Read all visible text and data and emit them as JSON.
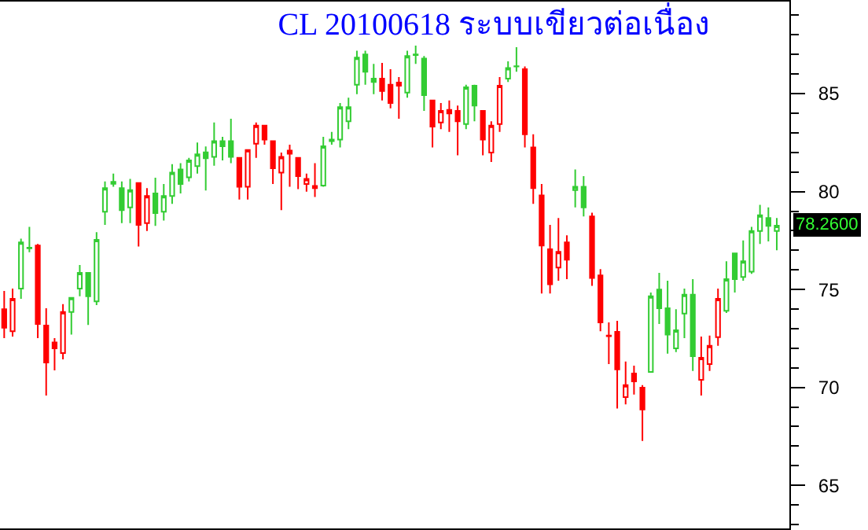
{
  "chart_data": {
    "type": "candlestick",
    "title": "CL 20100618 ระบบเขียวต่อเนื่อง",
    "categories": [
      null,
      null,
      null,
      null,
      null,
      null,
      null,
      null,
      null,
      null,
      null,
      null,
      null,
      null,
      null,
      null,
      null,
      null,
      null,
      null,
      null,
      null,
      null,
      null,
      null,
      null,
      null,
      null,
      null,
      null,
      null,
      null,
      null,
      null,
      null,
      null,
      null,
      null,
      null,
      null,
      null,
      null,
      null,
      null,
      null,
      null,
      null,
      null,
      null,
      null,
      null,
      null,
      null,
      null,
      null,
      null,
      null,
      null,
      null,
      null,
      null,
      null,
      null,
      null,
      null,
      null,
      null,
      null,
      null,
      null,
      null,
      null,
      null,
      null,
      null,
      null,
      null,
      null,
      null,
      null,
      null,
      null,
      null,
      null,
      null,
      null,
      null,
      null,
      null,
      null,
      null,
      null,
      null
    ],
    "ohlc": [
      [
        73.99,
        74.92,
        72.52,
        73.05
      ],
      [
        72.87,
        75.05,
        72.6,
        74.52
      ],
      [
        75.05,
        77.59,
        74.52,
        77.4
      ],
      [
        77.1,
        78.2,
        76.9,
        77.13
      ],
      [
        77.24,
        77.32,
        72.52,
        73.24
      ],
      [
        73.16,
        74.04,
        69.59,
        71.27
      ],
      [
        72.3,
        72.52,
        70.87,
        71.99
      ],
      [
        71.75,
        74.25,
        71.43,
        73.85
      ],
      [
        73.85,
        74.6,
        72.7,
        74.57
      ],
      [
        75.05,
        76.25,
        74.65,
        75.85
      ],
      [
        75.85,
        75.85,
        73.19,
        74.65
      ],
      [
        74.39,
        77.93,
        74.2,
        77.53
      ],
      [
        78.97,
        80.52,
        78.3,
        80.17
      ],
      [
        80.4,
        80.92,
        80.25,
        80.5
      ],
      [
        80.17,
        80.52,
        78.39,
        79.05
      ],
      [
        79.19,
        80.65,
        78.39,
        80.07
      ],
      [
        80.44,
        80.44,
        77.19,
        78.3
      ],
      [
        78.39,
        80.17,
        77.99,
        79.77
      ],
      [
        79.9,
        80.71,
        78.25,
        78.9
      ],
      [
        78.97,
        80.39,
        78.52,
        79.77
      ],
      [
        79.77,
        81.4,
        79.37,
        80.97
      ],
      [
        81.13,
        81.45,
        79.9,
        80.39
      ],
      [
        80.73,
        81.72,
        80.52,
        81.59
      ],
      [
        81.3,
        82.5,
        80.92,
        81.9
      ],
      [
        82.0,
        82.3,
        80.05,
        81.7
      ],
      [
        81.77,
        83.53,
        81.32,
        82.57
      ],
      [
        82.57,
        82.79,
        81.59,
        82.31
      ],
      [
        82.57,
        83.72,
        81.45,
        81.77
      ],
      [
        81.72,
        81.72,
        79.59,
        80.25
      ],
      [
        80.25,
        82.12,
        79.59,
        82.12
      ],
      [
        82.44,
        83.53,
        81.72,
        83.37
      ],
      [
        83.37,
        83.37,
        82.39,
        82.65
      ],
      [
        82.57,
        82.57,
        80.39,
        81.19
      ],
      [
        80.97,
        81.99,
        79.05,
        81.77
      ],
      [
        81.93,
        82.39,
        80.25,
        82.09
      ],
      [
        81.72,
        81.72,
        80.12,
        80.79
      ],
      [
        80.39,
        80.92,
        79.99,
        80.65
      ],
      [
        80.28,
        81.45,
        79.72,
        80.17
      ],
      [
        80.31,
        82.79,
        80.25,
        82.31
      ],
      [
        82.65,
        83.05,
        82.39,
        82.57
      ],
      [
        82.65,
        84.52,
        82.25,
        84.31
      ],
      [
        83.59,
        84.79,
        83.19,
        84.31
      ],
      [
        85.45,
        87.19,
        84.97,
        86.84
      ],
      [
        87.0,
        87.19,
        85.45,
        86.12
      ],
      [
        85.77,
        86.52,
        84.97,
        85.59
      ],
      [
        85.77,
        86.57,
        84.65,
        85.13
      ],
      [
        85.45,
        86.25,
        84.25,
        84.52
      ],
      [
        85.4,
        85.85,
        83.72,
        85.56
      ],
      [
        85.05,
        87.19,
        84.79,
        86.92
      ],
      [
        86.97,
        87.45,
        86.52,
        87.0
      ],
      [
        86.79,
        86.92,
        84.12,
        84.92
      ],
      [
        84.65,
        84.65,
        82.25,
        83.32
      ],
      [
        83.53,
        84.52,
        83.19,
        84.12
      ],
      [
        84.17,
        84.65,
        83.05,
        83.99
      ],
      [
        84.12,
        84.39,
        81.85,
        83.59
      ],
      [
        83.45,
        85.45,
        83.19,
        85.32
      ],
      [
        85.4,
        85.45,
        83.59,
        84.39
      ],
      [
        84.12,
        84.12,
        81.85,
        82.65
      ],
      [
        81.99,
        83.59,
        81.51,
        83.37
      ],
      [
        83.45,
        85.85,
        83.05,
        85.4
      ],
      [
        85.77,
        86.65,
        85.59,
        86.31
      ],
      [
        86.39,
        87.37,
        86.12,
        86.4
      ],
      [
        86.25,
        86.39,
        82.25,
        82.92
      ],
      [
        82.25,
        82.92,
        79.37,
        80.17
      ],
      [
        79.8,
        80.39,
        74.79,
        77.24
      ],
      [
        77.05,
        78.3,
        74.79,
        75.27
      ],
      [
        76.12,
        78.65,
        75.45,
        76.92
      ],
      [
        77.4,
        77.77,
        75.53,
        76.52
      ],
      [
        80.07,
        81.13,
        79.19,
        80.25
      ],
      [
        80.25,
        80.79,
        78.73,
        79.19
      ],
      [
        78.73,
        78.92,
        75.19,
        75.59
      ],
      [
        75.72,
        76.04,
        72.87,
        73.32
      ],
      [
        72.65,
        73.32,
        71.19,
        72.62
      ],
      [
        72.84,
        73.4,
        68.92,
        70.92
      ],
      [
        69.51,
        71.32,
        69.13,
        70.12
      ],
      [
        70.71,
        71.11,
        69.64,
        70.31
      ],
      [
        69.99,
        70.12,
        67.27,
        68.87
      ],
      [
        70.79,
        74.84,
        70.79,
        74.65
      ],
      [
        75.0,
        75.85,
        73.24,
        74.04
      ],
      [
        74.04,
        75.45,
        71.72,
        72.7
      ],
      [
        71.99,
        73.99,
        71.8,
        72.92
      ],
      [
        73.77,
        75.05,
        72.52,
        74.73
      ],
      [
        74.73,
        75.53,
        70.84,
        71.59
      ],
      [
        70.39,
        72.6,
        69.59,
        71.51
      ],
      [
        71.19,
        72.65,
        70.84,
        72.12
      ],
      [
        72.57,
        75.05,
        72.12,
        74.52
      ],
      [
        73.91,
        76.44,
        73.8,
        75.53
      ],
      [
        76.84,
        76.84,
        74.84,
        75.53
      ],
      [
        75.64,
        77.5,
        75.45,
        76.44
      ],
      [
        75.91,
        78.2,
        75.8,
        77.99
      ],
      [
        77.99,
        79.32,
        77.32,
        78.79
      ],
      [
        78.65,
        79.19,
        77.45,
        78.25
      ],
      [
        77.99,
        78.65,
        77.0,
        78.26
      ]
    ],
    "colors": [
      "#ff0000",
      "#ff0000",
      "#33cc33",
      "#33cc33",
      "#ff0000",
      "#ff0000",
      "#ff0000",
      "#ff0000",
      "#33cc33",
      "#33cc33",
      "#33cc33",
      "#33cc33",
      "#33cc33",
      "#33cc33",
      "#33cc33",
      "#33cc33",
      "#ff0000",
      "#ff0000",
      "#33cc33",
      "#33cc33",
      "#33cc33",
      "#33cc33",
      "#33cc33",
      "#33cc33",
      "#33cc33",
      "#33cc33",
      "#33cc33",
      "#33cc33",
      "#ff0000",
      "#ff0000",
      "#ff0000",
      "#ff0000",
      "#ff0000",
      "#ff0000",
      "#ff0000",
      "#ff0000",
      "#ff0000",
      "#ff0000",
      "#33cc33",
      "#33cc33",
      "#33cc33",
      "#33cc33",
      "#33cc33",
      "#33cc33",
      "#33cc33",
      "#ff0000",
      "#ff0000",
      "#ff0000",
      "#33cc33",
      "#33cc33",
      "#33cc33",
      "#ff0000",
      "#ff0000",
      "#ff0000",
      "#ff0000",
      "#33cc33",
      "#33cc33",
      "#ff0000",
      "#ff0000",
      "#ff0000",
      "#33cc33",
      "#33cc33",
      "#ff0000",
      "#ff0000",
      "#ff0000",
      "#ff0000",
      "#ff0000",
      "#ff0000",
      "#33cc33",
      "#33cc33",
      "#ff0000",
      "#ff0000",
      "#ff0000",
      "#ff0000",
      "#ff0000",
      "#ff0000",
      "#ff0000",
      "#33cc33",
      "#33cc33",
      "#33cc33",
      "#33cc33",
      "#33cc33",
      "#33cc33",
      "#ff0000",
      "#ff0000",
      "#ff0000",
      "#33cc33",
      "#33cc33",
      "#33cc33",
      "#33cc33",
      "#33cc33",
      "#33cc33",
      "#33cc33"
    ],
    "ylim": [
      62.8,
      89.7
    ],
    "yticks": [
      {
        "value": 63,
        "label": null
      },
      {
        "value": 64,
        "label": null
      },
      65,
      {
        "value": 66,
        "label": null
      },
      {
        "value": 67,
        "label": null
      },
      {
        "value": 68,
        "label": null
      },
      {
        "value": 69,
        "label": null
      },
      70,
      {
        "value": 71,
        "label": null
      },
      {
        "value": 72,
        "label": null
      },
      {
        "value": 73,
        "label": null
      },
      {
        "value": 74,
        "label": null
      },
      75,
      {
        "value": 76,
        "label": null
      },
      {
        "value": 77,
        "label": null
      },
      {
        "value": 78,
        "label": null
      },
      {
        "value": 79,
        "label": null
      },
      80,
      {
        "value": 81,
        "label": null
      },
      {
        "value": 82,
        "label": null
      },
      {
        "value": 83,
        "label": null
      },
      {
        "value": 84,
        "label": null
      },
      85,
      {
        "value": 86,
        "label": null
      },
      {
        "value": 87,
        "label": null
      },
      {
        "value": 88,
        "label": null
      },
      {
        "value": 89,
        "label": null
      }
    ],
    "tick_labels": "y",
    "grid": false,
    "legend": false,
    "annotations": [
      {
        "text": "78.2600",
        "y": 78.26
      }
    ]
  }
}
